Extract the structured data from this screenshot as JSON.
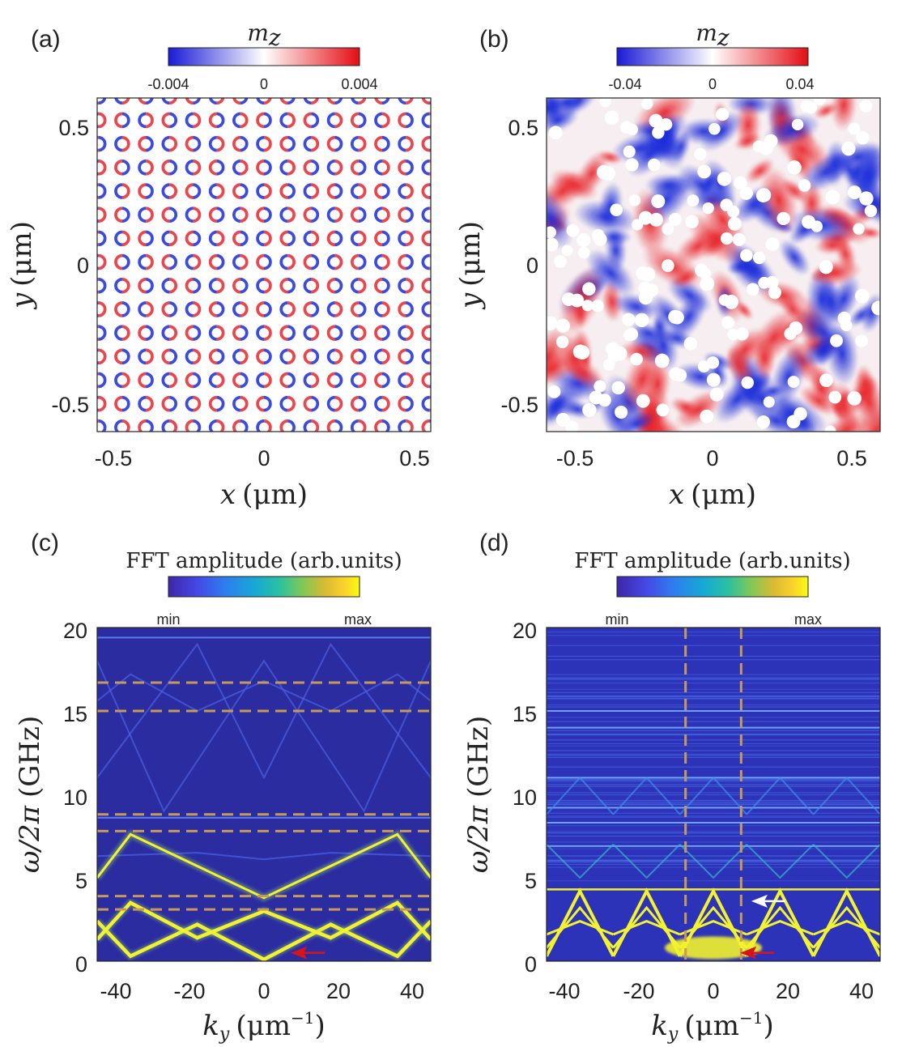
{
  "panels": {
    "a": {
      "label": "(a)",
      "colorbar": {
        "title": "m",
        "title_sub": "z",
        "ticks": [
          "-0.004",
          "0",
          "0.004"
        ]
      },
      "xticks": [
        "-0.5",
        "0",
        "0.5"
      ],
      "yticks": [
        "0.5",
        "0",
        "-0.5"
      ],
      "xlabel": {
        "var": "x",
        "unit": "(μm)"
      },
      "ylabel": {
        "var": "y",
        "unit": "(μm)"
      }
    },
    "b": {
      "label": "(b)",
      "colorbar": {
        "title": "m",
        "title_sub": "z",
        "ticks": [
          "-0.04",
          "0",
          "0.04"
        ]
      },
      "xticks": [
        "-0.5",
        "0",
        "0.5"
      ],
      "yticks": [
        "0.5",
        "0",
        "-0.5"
      ],
      "xlabel": {
        "var": "x",
        "unit": "(μm)"
      },
      "ylabel": {
        "var": "y",
        "unit": "(μm)"
      }
    },
    "c": {
      "label": "(c)",
      "colorbar": {
        "title": "FFT amplitude (arb.units)",
        "min": "min",
        "max": "max"
      },
      "xticks": [
        "-40",
        "-20",
        "0",
        "20",
        "40"
      ],
      "yticks": [
        "20",
        "15",
        "10",
        "5",
        "0"
      ],
      "xlabel": {
        "var": "k",
        "sub": "y",
        "unit": "(μm",
        "sup": "−1",
        "close": ")"
      },
      "ylabel": {
        "var": "ω/2π",
        "unit": "(GHz)"
      }
    },
    "d": {
      "label": "(d)",
      "colorbar": {
        "title": "FFT amplitude (arb.units)",
        "min": "min",
        "max": "max"
      },
      "xticks": [
        "-40",
        "-20",
        "0",
        "20",
        "40"
      ],
      "yticks": [
        "20",
        "15",
        "10",
        "5",
        "0"
      ],
      "xlabel": {
        "var": "k",
        "sub": "y",
        "unit": "(μm",
        "sup": "−1",
        "close": ")"
      },
      "ylabel": {
        "var": "ω/2π",
        "unit": "(GHz)"
      }
    }
  },
  "colors": {
    "red": "#e8262b",
    "blue": "#1a2bd9",
    "dispersion_bg": "#2b2ca0",
    "dispersion_line": "#f2f22e",
    "dashed": "#c89a5a",
    "arrow_red": "#d6151b"
  },
  "chart_data": [
    {
      "panel": "a",
      "type": "heatmap",
      "title": "m_z",
      "xlabel": "x (μm)",
      "ylabel": "y (μm)",
      "xlim": [
        -0.6,
        0.6
      ],
      "ylim": [
        -0.6,
        0.6
      ],
      "clim": [
        -0.004,
        0.004
      ],
      "description_values": {
        "lattice": "square",
        "period_um": 0.085,
        "hole_radius_um": 0.022
      }
    },
    {
      "panel": "b",
      "type": "heatmap",
      "title": "m_z",
      "xlabel": "x (μm)",
      "ylabel": "y (μm)",
      "xlim": [
        -0.6,
        0.6
      ],
      "ylim": [
        -0.6,
        0.6
      ],
      "clim": [
        -0.04,
        0.04
      ]
    },
    {
      "panel": "c",
      "type": "heatmap",
      "title": "FFT amplitude (arb.units)",
      "xlabel": "k_y (μm^-1)",
      "ylabel": "ω/2π (GHz)",
      "xlim": [
        -45,
        45
      ],
      "ylim": [
        0,
        20
      ],
      "dashed_hlines_GHz": [
        3.1,
        3.9,
        7.8,
        8.8,
        15.0,
        16.7
      ],
      "bright_bands": [
        {
          "name": "lowest-branch",
          "points": [
            [
              -45,
              2.4
            ],
            [
              -36,
              0.3
            ],
            [
              -18,
              2.2
            ],
            [
              0,
              0.1
            ],
            [
              18,
              2.2
            ],
            [
              36,
              0.3
            ],
            [
              45,
              2.4
            ]
          ]
        },
        {
          "name": "second-branch",
          "points": [
            [
              -45,
              1.3
            ],
            [
              -36,
              3.5
            ],
            [
              -18,
              1.4
            ],
            [
              0,
              3.0
            ],
            [
              18,
              1.4
            ],
            [
              36,
              3.5
            ],
            [
              45,
              1.3
            ]
          ]
        },
        {
          "name": "third-branch",
          "points": [
            [
              -45,
              5.0
            ],
            [
              -36,
              7.6
            ],
            [
              0,
              3.8
            ],
            [
              36,
              7.6
            ],
            [
              45,
              5.0
            ]
          ]
        }
      ],
      "arrow": {
        "color": "red",
        "k": 9,
        "f": 0.5
      }
    },
    {
      "panel": "d",
      "type": "heatmap",
      "title": "FFT amplitude (arb.units)",
      "xlabel": "k_y (μm^-1)",
      "ylabel": "ω/2π (GHz)",
      "xlim": [
        -45,
        45
      ],
      "ylim": [
        0,
        20
      ],
      "dashed_vlines_k": [
        -7.5,
        7.5
      ],
      "bright_band_top_GHz": 4.3,
      "faint_hlines_GHz": [
        6.9,
        8.3,
        9.2,
        11.0,
        14.0,
        15.0
      ],
      "arrows": [
        {
          "color": "white",
          "k": 12,
          "f": 3.6
        },
        {
          "color": "red",
          "k": 9,
          "f": 0.5
        }
      ]
    }
  ]
}
